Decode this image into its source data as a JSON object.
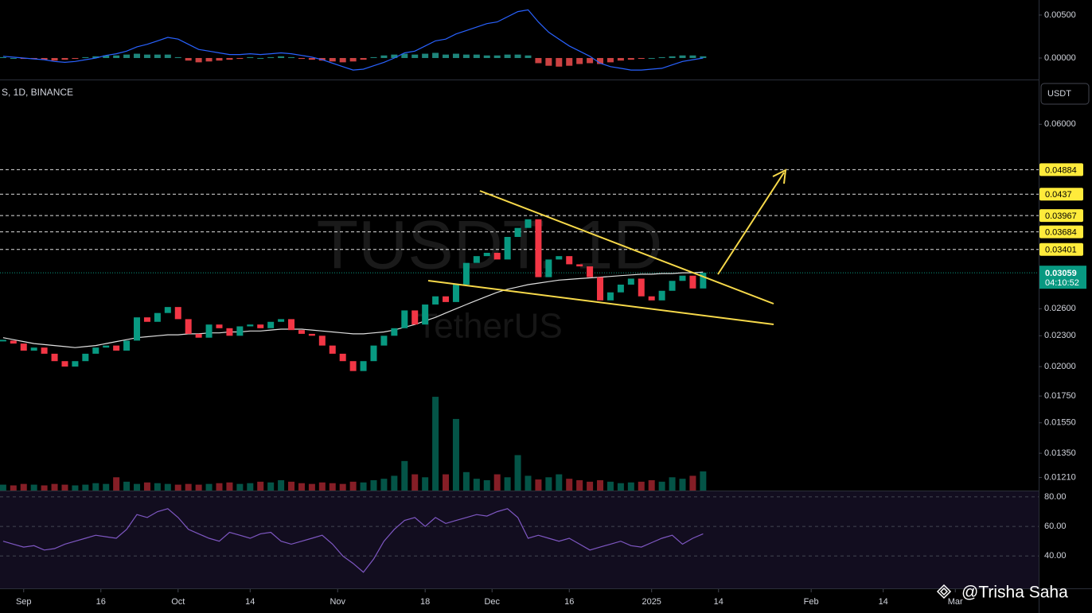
{
  "chart_data": {
    "type": "candlestick",
    "header": "S, 1D, BINANCE",
    "currency": "USDT",
    "watermark": "TUSDT, 1D",
    "watermark_name": "TetherUS",
    "signature": "@Trisha Saha",
    "up_color": "#089981",
    "down_color": "#f23645",
    "ma_color": "#e0e0e0",
    "rsi_color": "#7e57c2",
    "macd_color": "#2962ff",
    "level_color": "#ffeb3b",
    "xlim": [
      -0.3,
      100.6
    ],
    "xticks": [
      {
        "value": 2,
        "label": "Sep"
      },
      {
        "value": 9.5,
        "label": "16"
      },
      {
        "value": 17,
        "label": "Oct"
      },
      {
        "value": 24,
        "label": "14"
      },
      {
        "value": 32.5,
        "label": "Nov"
      },
      {
        "value": 41,
        "label": "18"
      },
      {
        "value": 47.5,
        "label": "Dec"
      },
      {
        "value": 55,
        "label": "16"
      },
      {
        "value": 63,
        "label": "2025"
      },
      {
        "value": 69.5,
        "label": "14"
      },
      {
        "value": 78.5,
        "label": "Feb"
      },
      {
        "value": 85.5,
        "label": "14"
      },
      {
        "value": 92.5,
        "label": "Mar"
      }
    ],
    "ylim": [
      0.0114,
      0.0735
    ],
    "log_scale": true,
    "yticks": [
      {
        "value": 0.06,
        "label": "0.06000"
      },
      {
        "value": 0.026,
        "label": "0.02600"
      },
      {
        "value": 0.023,
        "label": "0.02300"
      },
      {
        "value": 0.02,
        "label": "0.02000"
      },
      {
        "value": 0.0175,
        "label": "0.01750"
      },
      {
        "value": 0.0155,
        "label": "0.01550"
      },
      {
        "value": 0.0135,
        "label": "0.01350"
      },
      {
        "value": 0.0121,
        "label": "0.01210"
      }
    ],
    "levels": [
      0.04884,
      0.0437,
      0.03967,
      0.03684,
      0.03401
    ],
    "last_price": 0.03059,
    "countdown": "04:10:52",
    "close": [
      0.0225,
      0.0222,
      0.0215,
      0.0218,
      0.0212,
      0.0205,
      0.02,
      0.0205,
      0.0212,
      0.0218,
      0.022,
      0.0215,
      0.0225,
      0.025,
      0.0245,
      0.0255,
      0.0262,
      0.0248,
      0.0232,
      0.0228,
      0.0242,
      0.0238,
      0.023,
      0.024,
      0.0242,
      0.0238,
      0.0245,
      0.0248,
      0.0236,
      0.0232,
      0.023,
      0.022,
      0.0212,
      0.0205,
      0.0196,
      0.0205,
      0.022,
      0.023,
      0.0238,
      0.0258,
      0.0242,
      0.0265,
      0.0275,
      0.0268,
      0.029,
      0.032,
      0.033,
      0.0335,
      0.0325,
      0.036,
      0.0375,
      0.039,
      0.03,
      0.0325,
      0.033,
      0.0318,
      0.0315,
      0.03,
      0.027,
      0.028,
      0.029,
      0.0298,
      0.0275,
      0.027,
      0.0282,
      0.0295,
      0.0302,
      0.0285,
      0.0306
    ],
    "ma": [
      0.0228,
      0.0226,
      0.0224,
      0.0222,
      0.0221,
      0.022,
      0.0219,
      0.0218,
      0.0219,
      0.022,
      0.0222,
      0.0224,
      0.0226,
      0.0228,
      0.0229,
      0.023,
      0.0231,
      0.0231,
      0.0232,
      0.0232,
      0.0233,
      0.0233,
      0.0234,
      0.0234,
      0.0235,
      0.0235,
      0.0236,
      0.0237,
      0.0237,
      0.0237,
      0.0236,
      0.0235,
      0.0234,
      0.0233,
      0.0232,
      0.0232,
      0.0233,
      0.0234,
      0.0236,
      0.0239,
      0.0242,
      0.0246,
      0.025,
      0.0255,
      0.026,
      0.0265,
      0.027,
      0.0275,
      0.028,
      0.0284,
      0.0287,
      0.029,
      0.0292,
      0.0294,
      0.0296,
      0.0297,
      0.0298,
      0.0299,
      0.03,
      0.0301,
      0.0302,
      0.0303,
      0.0304,
      0.0304,
      0.0305,
      0.0305,
      0.0306,
      0.0306,
      0.0307
    ],
    "volume": [
      8,
      7,
      9,
      8,
      7,
      9,
      8,
      7,
      8,
      10,
      9,
      18,
      12,
      9,
      11,
      10,
      9,
      8,
      9,
      8,
      9,
      10,
      11,
      9,
      10,
      12,
      11,
      14,
      12,
      10,
      9,
      11,
      10,
      9,
      12,
      11,
      14,
      16,
      20,
      40,
      22,
      18,
      127,
      22,
      97,
      25,
      16,
      14,
      22,
      18,
      48,
      20,
      15,
      18,
      22,
      16,
      14,
      12,
      14,
      12,
      10,
      11,
      12,
      14,
      12,
      18,
      16,
      20,
      26
    ],
    "volume_max": 140,
    "rsi_ylim": [
      18.1,
      83.7
    ],
    "rsi_yticks": [
      {
        "value": 80,
        "label": "80.00"
      },
      {
        "value": 60,
        "label": "60.00"
      },
      {
        "value": 40,
        "label": "40.00"
      }
    ],
    "rsi": [
      50,
      48,
      46,
      47,
      44,
      45,
      48,
      50,
      52,
      54,
      53,
      52,
      58,
      68,
      66,
      70,
      72,
      66,
      58,
      55,
      52,
      50,
      56,
      54,
      52,
      55,
      56,
      50,
      48,
      50,
      52,
      54,
      48,
      40,
      35,
      29,
      38,
      50,
      58,
      64,
      66,
      60,
      66,
      62,
      64,
      66,
      68,
      67,
      70,
      72,
      66,
      52,
      54,
      52,
      50,
      52,
      48,
      44,
      46,
      48,
      50,
      47,
      46,
      49,
      52,
      54,
      48,
      52,
      55
    ],
    "macd_ylim": [
      -0.0025,
      0.00675
    ],
    "macd_yticks": [
      {
        "value": 0.005,
        "label": "0.00500"
      },
      {
        "value": 0,
        "label": "0.00000"
      }
    ],
    "macd": [
      0.0002,
      0.0001,
      0.0,
      -0.0001,
      -0.0002,
      -0.0004,
      -0.0005,
      -0.0004,
      -0.0002,
      0.0,
      0.0003,
      0.0005,
      0.0008,
      0.0013,
      0.0016,
      0.002,
      0.0024,
      0.0022,
      0.0016,
      0.001,
      0.0008,
      0.0006,
      0.0004,
      0.0004,
      0.0005,
      0.0004,
      0.0005,
      0.0006,
      0.0005,
      0.0003,
      0.0001,
      -0.0002,
      -0.0006,
      -0.001,
      -0.0014,
      -0.0013,
      -0.0009,
      -0.0005,
      0.0,
      0.0006,
      0.0008,
      0.0014,
      0.002,
      0.0022,
      0.0028,
      0.0032,
      0.0036,
      0.004,
      0.0042,
      0.0048,
      0.0054,
      0.0056,
      0.0042,
      0.003,
      0.0022,
      0.0014,
      0.0008,
      0.0002,
      -0.0006,
      -0.001,
      -0.0012,
      -0.0014,
      -0.0014,
      -0.0013,
      -0.0012,
      -0.0008,
      -0.0004,
      -0.0002,
      0.0
    ],
    "macd_hist": [
      0.0001,
      0.0,
      -0.0001,
      -0.0001,
      -0.0002,
      -0.0003,
      -0.0002,
      -0.0001,
      0.0001,
      0.0002,
      0.0003,
      0.0003,
      0.0004,
      0.0005,
      0.0004,
      0.0004,
      0.0004,
      0.0001,
      -0.0003,
      -0.0005,
      -0.0004,
      -0.0003,
      -0.0002,
      -0.0001,
      0.0001,
      0.0,
      0.0001,
      0.0002,
      0.0001,
      -0.0001,
      -0.0002,
      -0.0003,
      -0.0004,
      -0.0005,
      -0.0004,
      -0.0002,
      0.0001,
      0.0003,
      0.0004,
      0.0005,
      0.0004,
      0.0005,
      0.0006,
      0.0004,
      0.0005,
      0.0004,
      0.0004,
      0.0003,
      0.0003,
      0.0004,
      0.0004,
      0.0003,
      -0.0006,
      -0.0009,
      -0.001,
      -0.0009,
      -0.0007,
      -0.0006,
      -0.0007,
      -0.0005,
      -0.0003,
      -0.0002,
      -0.0001,
      0.0,
      0.0001,
      0.0002,
      0.0003,
      0.0003,
      0.0002
    ]
  }
}
